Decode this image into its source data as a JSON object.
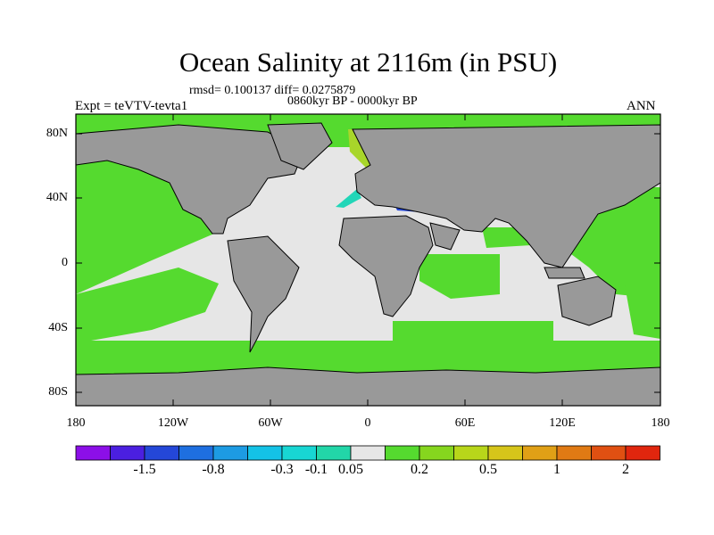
{
  "title": "Ocean Salinity at 2116m (in PSU)",
  "stats": "rmsd= 0.100137 diff= 0.0275879",
  "period": "0860kyr BP - 0000kyr BP",
  "experiment": "Expt = teVTV-tevta1",
  "season": "ANN",
  "lat_labels": [
    "80N",
    "40N",
    "0",
    "40S",
    "80S"
  ],
  "lon_labels": [
    "180",
    "120W",
    "60W",
    "0",
    "60E",
    "120E",
    "180"
  ],
  "colorbar": {
    "labels": [
      "-1.5",
      "-0.8",
      "-0.3",
      "-0.1",
      "0.05",
      "0.2",
      "0.5",
      "1",
      "2"
    ],
    "colors": [
      "#8C0FE8",
      "#4B1FE0",
      "#2447D8",
      "#1E6FE0",
      "#1D9BE3",
      "#14C2E6",
      "#18D6D3",
      "#22D6A8",
      "#E6E6E6",
      "#55DA2F",
      "#86D61E",
      "#B8D61A",
      "#D6C51A",
      "#E0A016",
      "#E07A14",
      "#E05012",
      "#E0260E"
    ]
  },
  "map_colors": {
    "land": "#999999",
    "near_zero": "#E6E6E6",
    "positive_small": "#55DA2F",
    "positive_moderate": "#A8D62A",
    "negative_moderate": "#22D6B8",
    "negative_large": "#2447D8"
  }
}
